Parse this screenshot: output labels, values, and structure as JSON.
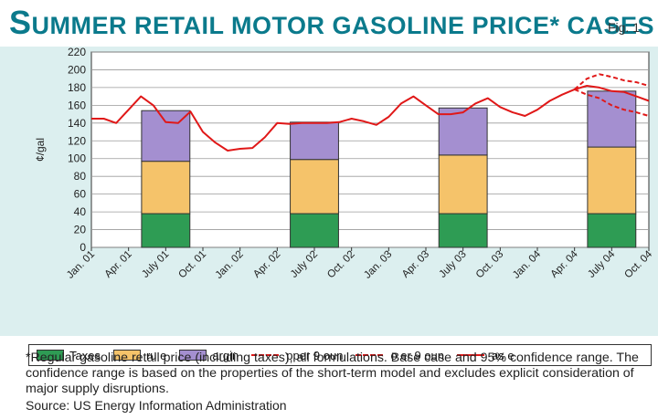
{
  "header": {
    "title_initial": "S",
    "title_rest": "UMMER RETAIL MOTOR GASOLINE PRICE* CASES",
    "fig_label": "Fig. 1"
  },
  "chart_data": {
    "type": "bar",
    "ylabel": "¢/gal",
    "ylim": [
      0,
      220
    ],
    "ytick_step": 20,
    "x_ticks": [
      "Jan. 01",
      "Apr. 01",
      "July 01",
      "Oct. 01",
      "Jan. 02",
      "Apr. 02",
      "July 02",
      "Oct. 02",
      "Jan. 03",
      "Apr. 03",
      "July 03",
      "Oct. 03",
      "Jan. 04",
      "Apr. 04",
      "July 04",
      "Oct. 04"
    ],
    "stacked_bars": {
      "categories": [
        "July 01",
        "July 02",
        "July 03",
        "July 04"
      ],
      "series": [
        {
          "name": "Taxes",
          "values": [
            38,
            38,
            38,
            38
          ]
        },
        {
          "name": "ru e",
          "values": [
            59,
            61,
            66,
            75
          ]
        },
        {
          "name": "argin",
          "values": [
            57,
            42,
            53,
            63
          ]
        }
      ]
    },
    "lines": {
      "x": [
        "Jan. 01",
        "Feb. 01",
        "Mar. 01",
        "Apr. 01",
        "May 01",
        "June 01",
        "July 01",
        "Aug. 01",
        "Sep. 01",
        "Oct. 01",
        "Nov. 01",
        "Dec. 01",
        "Jan. 02",
        "Feb. 02",
        "Mar. 02",
        "Apr. 02",
        "May 02",
        "June 02",
        "July 02",
        "Aug. 02",
        "Sep. 02",
        "Oct. 02",
        "Nov. 02",
        "Dec. 02",
        "Jan. 03",
        "Feb. 03",
        "Mar. 03",
        "Apr. 03",
        "May 03",
        "June 03",
        "July 03",
        "Aug. 03",
        "Sep. 03",
        "Oct. 03",
        "Nov. 03",
        "Dec. 03",
        "Jan. 04",
        "Feb. 04",
        "Mar. 04",
        "Apr. 04",
        "May 04",
        "June 04",
        "July 04",
        "Aug. 04",
        "Sep. 04",
        "Oct. 04"
      ],
      "series": [
        {
          "name": "as e",
          "style": "solid",
          "values": [
            145,
            145,
            140,
            155,
            170,
            160,
            141,
            140,
            153,
            130,
            118,
            109,
            111,
            112,
            124,
            140,
            139,
            140,
            140,
            140,
            141,
            145,
            142,
            138,
            147,
            162,
            170,
            160,
            150,
            150,
            152,
            162,
            168,
            158,
            152,
            148,
            155,
            165,
            172,
            178,
            182,
            180,
            176,
            175,
            170,
            165
          ]
        },
        {
          "name": "pper 9 oun",
          "style": "dashed",
          "values": [
            null,
            null,
            null,
            null,
            null,
            null,
            null,
            null,
            null,
            null,
            null,
            null,
            null,
            null,
            null,
            null,
            null,
            null,
            null,
            null,
            null,
            null,
            null,
            null,
            null,
            null,
            null,
            null,
            null,
            null,
            null,
            null,
            null,
            null,
            null,
            null,
            null,
            null,
            null,
            178,
            190,
            195,
            192,
            188,
            186,
            182
          ]
        },
        {
          "name": "o er 9 oun",
          "style": "dashed",
          "values": [
            null,
            null,
            null,
            null,
            null,
            null,
            null,
            null,
            null,
            null,
            null,
            null,
            null,
            null,
            null,
            null,
            null,
            null,
            null,
            null,
            null,
            null,
            null,
            null,
            null,
            null,
            null,
            null,
            null,
            null,
            null,
            null,
            null,
            null,
            null,
            null,
            null,
            null,
            null,
            178,
            172,
            168,
            160,
            155,
            152,
            148
          ]
        }
      ]
    },
    "colors": {
      "taxes": "#2e9c54",
      "crude": "#f5c36a",
      "margin": "#a48fd0",
      "line": "#e01818",
      "panel": "#dcefef",
      "plot": "#ffffff",
      "title": "#0b7a8c"
    }
  },
  "legend": [
    {
      "label": "Taxes",
      "kind": "swatch",
      "color": "#2e9c54"
    },
    {
      "label": "ru e",
      "kind": "swatch",
      "color": "#f5c36a"
    },
    {
      "label": "argin",
      "kind": "swatch",
      "color": "#a48fd0"
    },
    {
      "label": "pper 9   oun",
      "kind": "dashed",
      "color": "#e01818"
    },
    {
      "label": "o er 9   oun",
      "kind": "dashed",
      "color": "#e01818"
    },
    {
      "label": "as e",
      "kind": "solid",
      "color": "#e01818"
    }
  ],
  "footnote": "*Regular gasoline retail price (including taxes), all formulations. Base case and 95% confidence range. The confidence range is based on the properties of the short-term model and excludes explicit consideration of major supply disruptions.",
  "source": "Source: US Energy Information Administration"
}
